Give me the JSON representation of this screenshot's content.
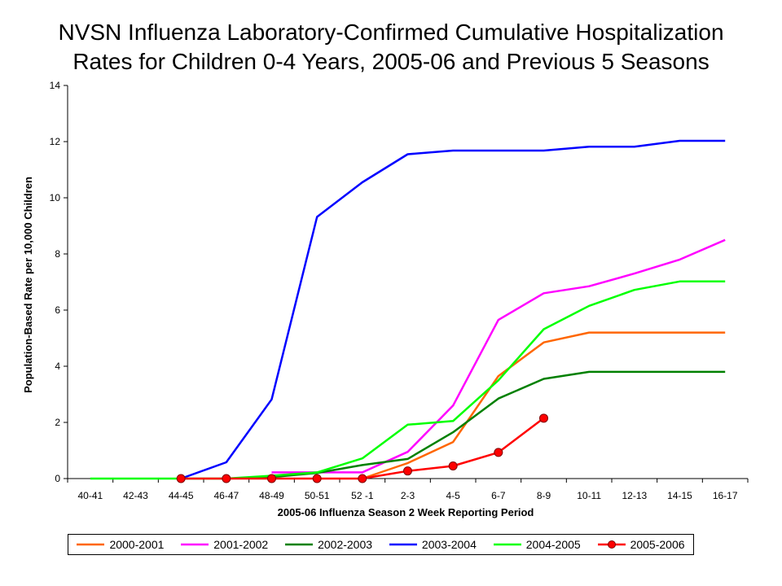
{
  "chart_data": {
    "type": "line",
    "title": [
      "NVSN Influenza Laboratory-Confirmed Cumulative Hospitalization",
      "Rates for Children 0-4 Years, 2005-06 and Previous 5 Seasons"
    ],
    "xlabel": "2005-06 Influenza Season 2 Week Reporting Period",
    "ylabel": "Population-Based Rate per 10,000 Children",
    "ylim": [
      0,
      14
    ],
    "yticks": [
      0,
      2,
      4,
      6,
      8,
      10,
      12,
      14
    ],
    "grid": false,
    "legend_position": "bottom",
    "categories": [
      "40-41",
      "42-43",
      "44-45",
      "46-47",
      "48-49",
      "50-51",
      "52 -1",
      "2-3",
      "4-5",
      "6-7",
      "8-9",
      "10-11",
      "12-13",
      "14-15",
      "16-17"
    ],
    "series": [
      {
        "name": "2000-2001",
        "color": "#ff6600",
        "markers": false,
        "values": [
          null,
          null,
          null,
          null,
          null,
          null,
          0.0,
          0.55,
          1.3,
          3.65,
          4.85,
          5.2,
          5.2,
          5.2,
          5.2
        ]
      },
      {
        "name": "2001-2002",
        "color": "#ff00ff",
        "markers": false,
        "values": [
          null,
          null,
          null,
          null,
          0.22,
          0.22,
          0.22,
          0.95,
          2.6,
          5.65,
          6.6,
          6.85,
          7.3,
          7.8,
          8.5
        ]
      },
      {
        "name": "2002-2003",
        "color": "#008000",
        "markers": false,
        "values": [
          null,
          null,
          null,
          0.0,
          0.05,
          0.2,
          0.48,
          0.7,
          1.65,
          2.85,
          3.55,
          3.8,
          3.8,
          3.8,
          3.8
        ]
      },
      {
        "name": "2003-2004",
        "color": "#0000ff",
        "markers": false,
        "values": [
          null,
          null,
          0.0,
          0.58,
          2.82,
          9.32,
          10.55,
          11.55,
          11.68,
          11.68,
          11.68,
          11.82,
          11.82,
          12.03,
          12.03
        ]
      },
      {
        "name": "2004-2005",
        "color": "#00ff00",
        "markers": false,
        "values": [
          0.0,
          0.0,
          0.0,
          0.0,
          0.1,
          0.22,
          0.72,
          1.92,
          2.05,
          3.5,
          5.32,
          6.15,
          6.72,
          7.02,
          7.02
        ]
      },
      {
        "name": "2005-2006",
        "color": "#ff0000",
        "markers": true,
        "values": [
          null,
          null,
          0.0,
          0.0,
          0.0,
          0.0,
          0.0,
          0.27,
          0.45,
          0.93,
          2.15,
          null,
          null,
          null,
          null
        ]
      }
    ]
  }
}
